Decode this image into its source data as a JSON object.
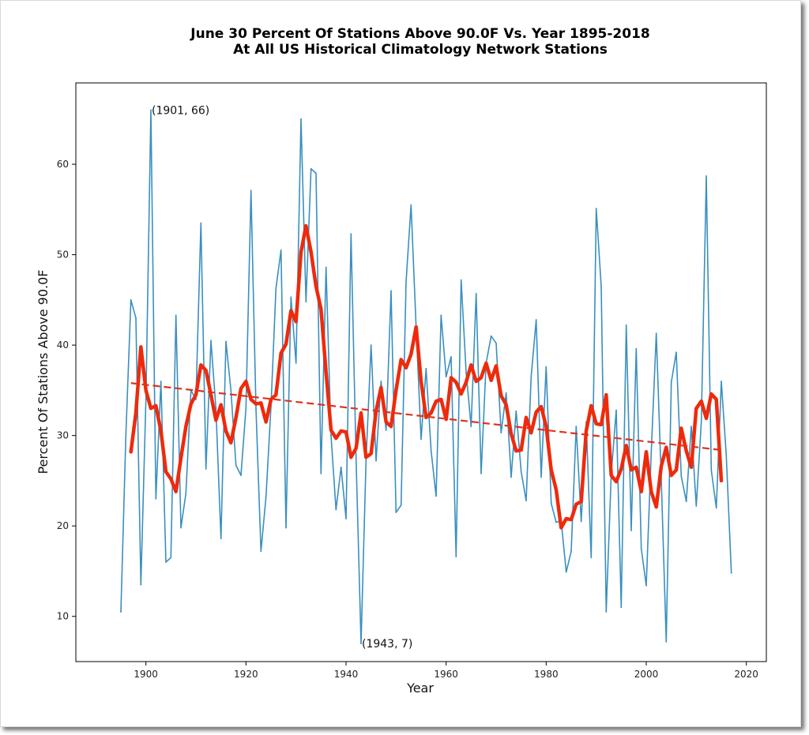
{
  "chart_data": {
    "type": "line",
    "title_line1": "June 30 Percent Of Stations Above 90.0F Vs. Year 1895-2018",
    "title_line2": "At All US Historical Climatology Network Stations",
    "xlabel": "Year",
    "ylabel": "Percent Of Stations Above 90.0F",
    "xlim": [
      1886,
      2024
    ],
    "ylim": [
      5,
      69
    ],
    "xticks": [
      1900,
      1920,
      1940,
      1960,
      1980,
      2000,
      2020
    ],
    "yticks": [
      10,
      20,
      30,
      40,
      50,
      60
    ],
    "grid": false,
    "annotations": [
      {
        "text": "(1901, 66)",
        "x": 1901,
        "y": 66
      },
      {
        "text": "(1943, 7)",
        "x": 1943,
        "y": 7
      }
    ],
    "series": [
      {
        "kind": "annual",
        "color": "#3a8fbf",
        "x": [
          1895,
          1896,
          1897,
          1898,
          1899,
          1900,
          1901,
          1902,
          1903,
          1904,
          1905,
          1906,
          1907,
          1908,
          1909,
          1910,
          1911,
          1912,
          1913,
          1914,
          1915,
          1916,
          1917,
          1918,
          1919,
          1920,
          1921,
          1922,
          1923,
          1924,
          1925,
          1926,
          1927,
          1928,
          1929,
          1930,
          1931,
          1932,
          1933,
          1934,
          1935,
          1936,
          1937,
          1938,
          1939,
          1940,
          1941,
          1942,
          1943,
          1944,
          1945,
          1946,
          1947,
          1948,
          1949,
          1950,
          1951,
          1952,
          1953,
          1954,
          1955,
          1956,
          1957,
          1958,
          1959,
          1960,
          1961,
          1962,
          1963,
          1964,
          1965,
          1966,
          1967,
          1968,
          1969,
          1970,
          1971,
          1972,
          1973,
          1974,
          1975,
          1976,
          1977,
          1978,
          1979,
          1980,
          1981,
          1982,
          1983,
          1984,
          1985,
          1986,
          1987,
          1988,
          1989,
          1990,
          1991,
          1992,
          1993,
          1994,
          1995,
          1996,
          1997,
          1998,
          1999,
          2000,
          2001,
          2002,
          2003,
          2004,
          2005,
          2006,
          2007,
          2008,
          2009,
          2010,
          2011,
          2012,
          2013,
          2014,
          2015,
          2016,
          2017
        ],
        "values": [
          10.5,
          30,
          45,
          43,
          13.5,
          34,
          66,
          23,
          36,
          16,
          16.5,
          43.3,
          19.8,
          23.6,
          35,
          34,
          53.5,
          26.3,
          40.5,
          33,
          18.6,
          40.4,
          35,
          26.7,
          25.6,
          33,
          57.1,
          33,
          17.2,
          23.2,
          33.2,
          46.3,
          50.5,
          19.8,
          45.3,
          38,
          65,
          44.8,
          59.5,
          59,
          25.8,
          48.6,
          30,
          21.8,
          26.5,
          20.8,
          52.3,
          27.5,
          7,
          27.2,
          40,
          27.2,
          36,
          30.6,
          46,
          21.5,
          22.3,
          47,
          55.5,
          42,
          29.6,
          37.4,
          28.3,
          23.3,
          43.3,
          36.5,
          38.7,
          16.6,
          47.2,
          37,
          31,
          45.7,
          25.8,
          38,
          41,
          40.2,
          30.3,
          34.7,
          25.4,
          32.7,
          26,
          22.8,
          36.5,
          42.8,
          25.4,
          37.6,
          22.5,
          20.4,
          20.6,
          14.9,
          17.2,
          31,
          20.5,
          31.5,
          16.5,
          55.1,
          46.5,
          10.5,
          25.8,
          32.8,
          11,
          42.2,
          19.5,
          39.6,
          17.5,
          13.4,
          28.1,
          41.3,
          25.2,
          7.2,
          35.9,
          39.2,
          25.5,
          22.7,
          31,
          22.2,
          31.5,
          58.7,
          26.2,
          22,
          36,
          27.8,
          14.8
        ]
      },
      {
        "kind": "moving_average",
        "color": "#ee2a0c",
        "x": [
          1897,
          1898,
          1899,
          1900,
          1901,
          1902,
          1903,
          1904,
          1905,
          1906,
          1907,
          1908,
          1909,
          1910,
          1911,
          1912,
          1913,
          1914,
          1915,
          1916,
          1917,
          1918,
          1919,
          1920,
          1921,
          1922,
          1923,
          1924,
          1925,
          1926,
          1927,
          1928,
          1929,
          1930,
          1931,
          1932,
          1933,
          1934,
          1935,
          1936,
          1937,
          1938,
          1939,
          1940,
          1941,
          1942,
          1943,
          1944,
          1945,
          1946,
          1947,
          1948,
          1949,
          1950,
          1951,
          1952,
          1953,
          1954,
          1955,
          1956,
          1957,
          1958,
          1959,
          1960,
          1961,
          1962,
          1963,
          1964,
          1965,
          1966,
          1967,
          1968,
          1969,
          1970,
          1971,
          1972,
          1973,
          1974,
          1975,
          1976,
          1977,
          1978,
          1979,
          1980,
          1981,
          1982,
          1983,
          1984,
          1985,
          1986,
          1987,
          1988,
          1989,
          1990,
          1991,
          1992,
          1993,
          1994,
          1995,
          1996,
          1997,
          1998,
          1999,
          2000,
          2001,
          2002,
          2003,
          2004,
          2005,
          2006,
          2007,
          2008,
          2009,
          2010,
          2011,
          2012,
          2013,
          2014,
          2015
        ],
        "values": [
          28.2,
          32.5,
          39.8,
          35,
          33,
          33.3,
          30.5,
          26,
          25.2,
          23.8,
          27.5,
          31,
          33.5,
          34.5,
          37.8,
          37.2,
          34.5,
          31.7,
          33.4,
          30.5,
          29.2,
          32,
          35.2,
          36,
          34,
          33.5,
          33.6,
          31.5,
          34,
          34.5,
          39.1,
          40.1,
          43.8,
          42.6,
          50.3,
          53.2,
          50.3,
          46.5,
          44,
          37,
          30.6,
          29.7,
          30.5,
          30.4,
          27.6,
          28.6,
          32.5,
          27.6,
          28,
          32.7,
          35.3,
          31.5,
          31,
          35,
          38.4,
          37.5,
          39,
          42,
          36,
          32,
          32.5,
          33.8,
          34,
          31.8,
          36.4,
          35.9,
          34.6,
          35.9,
          37.8,
          36,
          36.4,
          38,
          36.1,
          37.7,
          34.4,
          33.4,
          30.2,
          28.3,
          28.4,
          32,
          30.3,
          32.6,
          33.2,
          31,
          26.2,
          24,
          19.8,
          20.8,
          20.7,
          22.4,
          22.7,
          30.5,
          33.3,
          31.3,
          31.2,
          34.5,
          25.6,
          24.9,
          26.3,
          28.9,
          26.2,
          26.5,
          23.8,
          28.2,
          23.8,
          22.1,
          26.6,
          28.7,
          25.6,
          26.2,
          30.8,
          28.3,
          26.5,
          33,
          33.8,
          31.9,
          34.6,
          34,
          25
        ]
      }
    ],
    "trend": {
      "color": "#e0331c",
      "style": "dashed",
      "x": [
        1897,
        2015
      ],
      "y": [
        35.8,
        28.4
      ]
    }
  }
}
